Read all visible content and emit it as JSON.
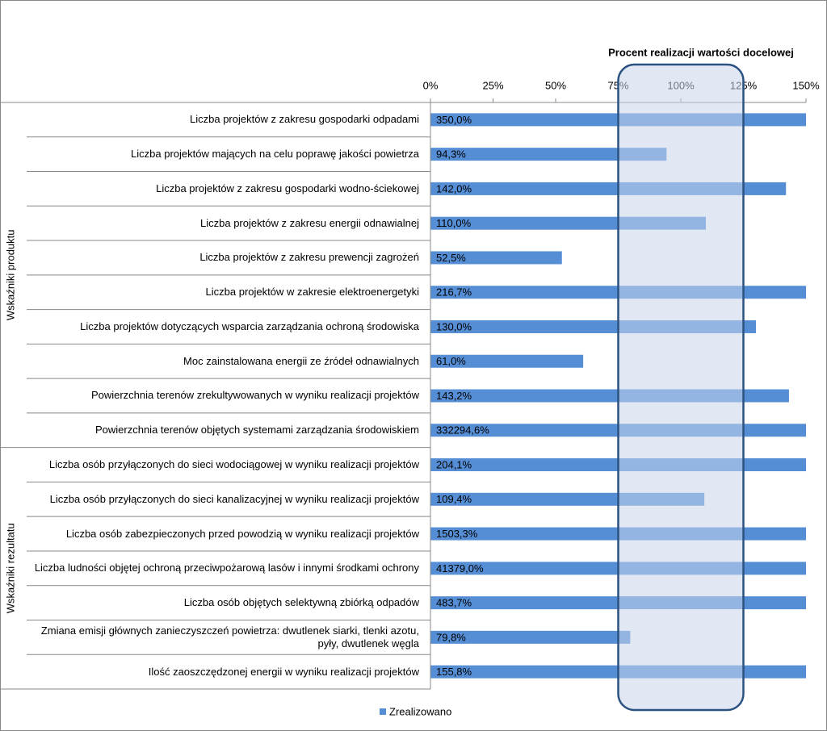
{
  "chart_data": {
    "type": "bar",
    "orientation": "horizontal",
    "legend_name": "Zrealizowano",
    "color": "#558ed5",
    "xlim": [
      0,
      150
    ],
    "xticks": [
      {
        "value": 0,
        "label": "0%"
      },
      {
        "value": 25,
        "label": "25%"
      },
      {
        "value": 50,
        "label": "50%"
      },
      {
        "value": 75,
        "label": "75%"
      },
      {
        "value": 100,
        "label": "100%"
      },
      {
        "value": 125,
        "label": "125%"
      },
      {
        "value": 150,
        "label": "150%"
      }
    ],
    "highlight": {
      "label": "Procent realizacji wartości docelowej",
      "range": [
        75,
        125
      ]
    },
    "groups": [
      {
        "name": "Wskaźniki produktu",
        "categories": [
          "Liczba projektów z zakresu gospodarki odpadami",
          "Liczba projektów mających na celu poprawę jakości powietrza",
          "Liczba projektów z zakresu gospodarki wodno-ściekowej",
          "Liczba projektów z zakresu energii odnawialnej",
          "Liczba projektów z zakresu prewencji zagrożeń",
          "Liczba projektów w zakresie elektroenergetyki",
          "Liczba projektów dotyczących wsparcia zarządzania ochroną środowiska",
          "Moc zainstalowana energii ze źródeł odnawialnych",
          "Powierzchnia terenów zrekultywowanych w wyniku realizacji projektów",
          "Powierzchnia terenów objętych systemami zarządzania środowiskiem"
        ],
        "values": [
          350.0,
          94.3,
          142.0,
          110.0,
          52.5,
          216.7,
          130.0,
          61.0,
          143.2,
          332294.6
        ],
        "value_labels": [
          "350,0%",
          "94,3%",
          "142,0%",
          "110,0%",
          "52,5%",
          "216,7%",
          "130,0%",
          "61,0%",
          "143,2%",
          "332294,6%"
        ]
      },
      {
        "name": "Wskaźniki rezultatu",
        "categories": [
          "Liczba osób przyłączonych do sieci wodociągowej w wyniku realizacji projektów",
          "Liczba osób przyłączonych do sieci kanalizacyjnej w wyniku realizacji projektów",
          "Liczba osób zabezpieczonych przed powodzią w wyniku realizacji projektów",
          "Liczba ludności objętej ochroną przeciwpożarową lasów i innymi środkami ochrony",
          "Liczba osób objętych selektywną zbiórką odpadów",
          "Zmiana emisji głównych zanieczyszczeń powietrza: dwutlenek siarki, tlenki azotu, pyły, dwutlenek węgla",
          "Ilość zaoszczędzonej energii w wyniku realizacji projektów"
        ],
        "values": [
          204.1,
          109.4,
          1503.3,
          41379.0,
          483.7,
          79.8,
          155.8
        ],
        "value_labels": [
          "204,1%",
          "109,4%",
          "1503,3%",
          "41379,0%",
          "483,7%",
          "79,8%",
          "155,8%"
        ]
      }
    ]
  }
}
